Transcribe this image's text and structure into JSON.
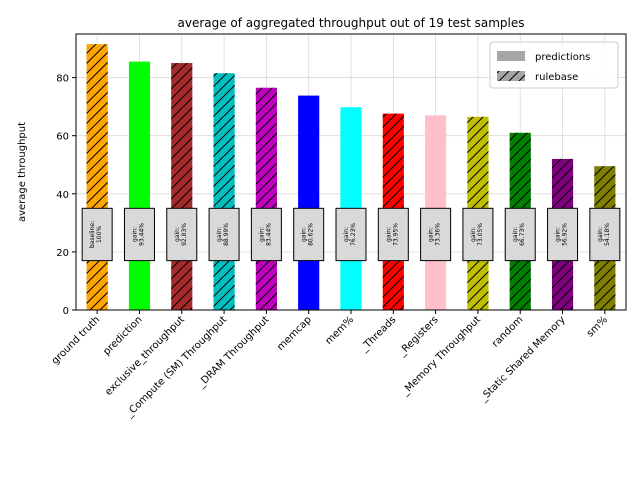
{
  "chart_data": {
    "type": "bar",
    "title": "average of aggregated throughput out of 19 test samples",
    "xlabel": "",
    "ylabel": "average throughput",
    "ylim": [
      0,
      95
    ],
    "yticks": [
      0,
      20,
      40,
      60,
      80
    ],
    "grid": true,
    "legend_position": "top-right",
    "legend": [
      {
        "label": "predictions",
        "style": "solid"
      },
      {
        "label": "rulebase",
        "style": "hatched"
      }
    ],
    "categories": [
      "ground truth",
      "prediction",
      "exclusive_throughput",
      "_Compute (SM) Throughput",
      "_DRAM Throughput",
      "memcap",
      "mem%",
      "_Threads",
      "_Registers",
      "_Memory Throughput",
      "random",
      "_Static Shared Memory",
      "sm%"
    ],
    "values": [
      91.5,
      85.5,
      85.0,
      81.5,
      76.5,
      73.8,
      69.8,
      67.6,
      67.0,
      66.5,
      61.0,
      52.0,
      49.5
    ],
    "colors": [
      "#ffa500",
      "#00ff00",
      "#a52a2a",
      "#00bfbf",
      "#bf00bf",
      "#0000ff",
      "#00ffff",
      "#ff0000",
      "#ffc0cb",
      "#bfbf00",
      "#008000",
      "#800080",
      "#808000"
    ],
    "hatched": [
      true,
      false,
      true,
      true,
      true,
      false,
      false,
      true,
      false,
      true,
      true,
      true,
      true
    ],
    "annotations": [
      [
        "baseline:",
        "100%"
      ],
      [
        "gain:",
        "93.44%"
      ],
      [
        "gain:",
        "92.83%"
      ],
      [
        "gain:",
        "88.99%"
      ],
      [
        "gain:",
        "83.44%"
      ],
      [
        "gain:",
        "80.62%"
      ],
      [
        "gain:",
        "76.23%"
      ],
      [
        "gain:",
        "73.95%"
      ],
      [
        "gain:",
        "73.36%"
      ],
      [
        "gain:",
        "73.05%"
      ],
      [
        "gain:",
        "66.73%"
      ],
      [
        "gain:",
        "56.92%"
      ],
      [
        "gain:",
        "54.18%"
      ]
    ],
    "annotation_y_range": [
      17,
      35
    ]
  }
}
